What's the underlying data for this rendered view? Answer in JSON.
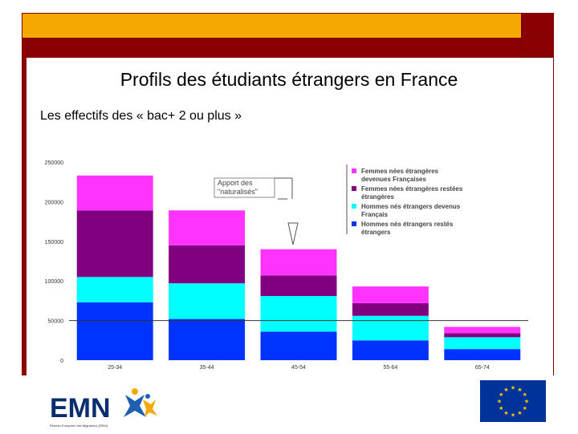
{
  "slide": {
    "title": "Profils des étudiants étrangers en France",
    "subtitle": "Les effectifs des « bac+ 2 ou plus »",
    "colors": {
      "frame_accent": "#f5a800",
      "frame_dark": "#8b0000"
    }
  },
  "annotation": "Apport des \"naturalisés\"",
  "logo_text": "EMN",
  "logo_caption": "Réseau Européen des Migrations (REM)",
  "chart_data": {
    "type": "bar",
    "stacked": true,
    "categories": [
      "25-34",
      "35-44",
      "45-54",
      "55-64",
      "65-74"
    ],
    "ylim": [
      0,
      250000
    ],
    "yticks": [
      "0",
      "50000",
      "100000",
      "150000",
      "200000",
      "250000"
    ],
    "grid": false,
    "legend_position": "top-right",
    "series": [
      {
        "name": "Hommes nés étrangers restés étrangers",
        "color": "#0033ff",
        "values": [
          73000,
          52000,
          36000,
          25000,
          14000
        ]
      },
      {
        "name": "Hommes nés étrangers devenus Français",
        "color": "#00ffff",
        "values": [
          32000,
          45000,
          45000,
          31000,
          15000
        ]
      },
      {
        "name": "Femmes nées étrangères restées étrangères",
        "color": "#800080",
        "values": [
          84000,
          48000,
          26000,
          16000,
          5000
        ]
      },
      {
        "name": "Femmes nées étrangères devenues Françaises",
        "color": "#ff33ff",
        "values": [
          44000,
          44000,
          33000,
          21000,
          8000
        ]
      }
    ]
  }
}
